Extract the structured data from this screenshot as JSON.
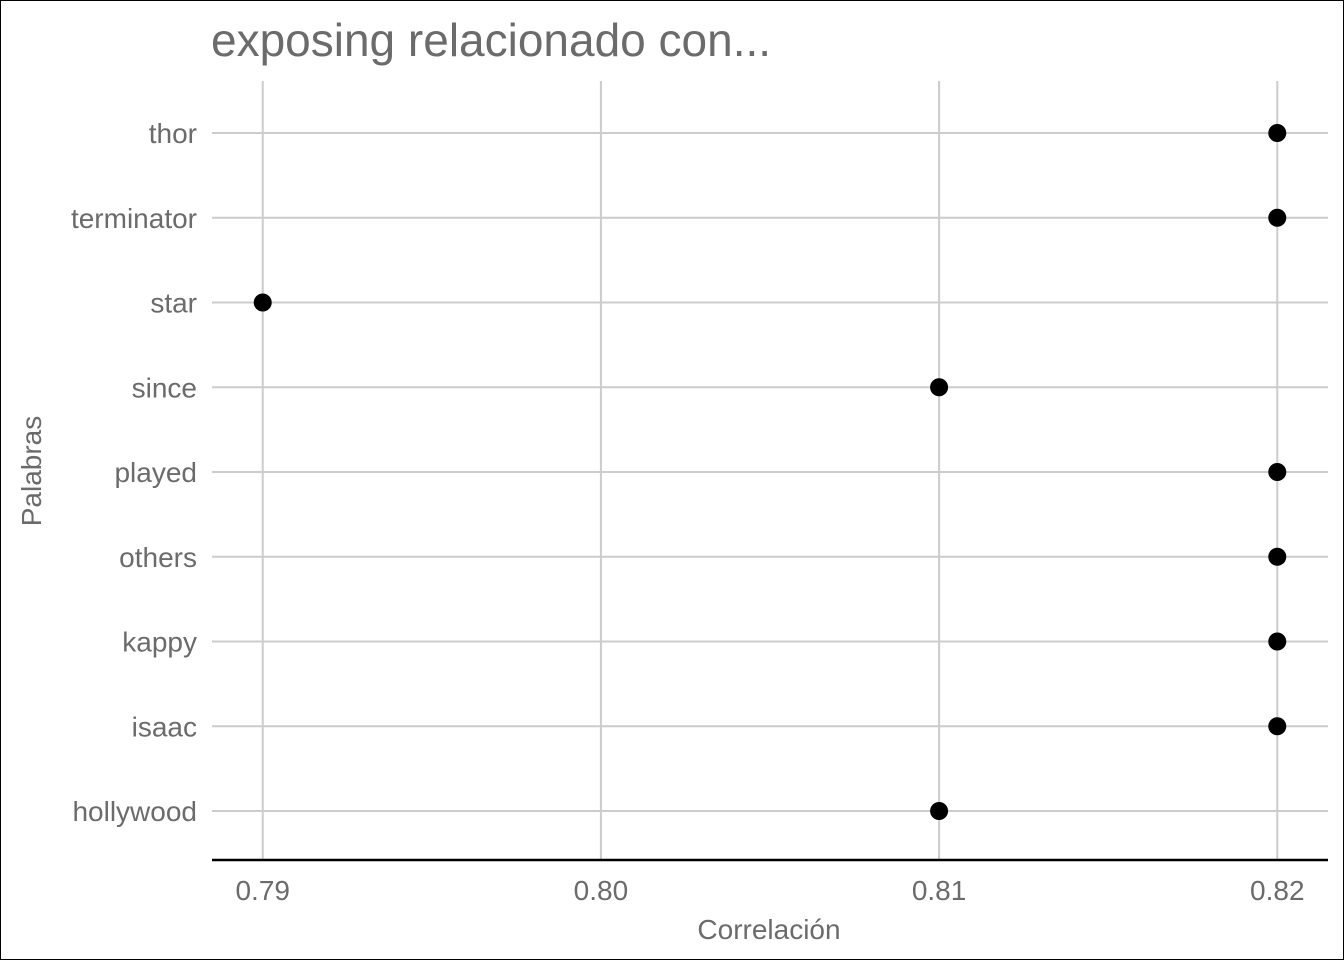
{
  "chart_data": {
    "type": "scatter",
    "title": "exposing relacionado con...",
    "xlabel": "Correlación",
    "ylabel": "Palabras",
    "categories": [
      "hollywood",
      "isaac",
      "kappy",
      "others",
      "played",
      "since",
      "star",
      "terminator",
      "thor"
    ],
    "values": [
      0.81,
      0.82,
      0.82,
      0.82,
      0.82,
      0.81,
      0.79,
      0.82,
      0.82
    ],
    "x_ticks": [
      "0.79",
      "0.80",
      "0.81",
      "0.82"
    ],
    "xlim": [
      0.7885,
      0.8215
    ],
    "grid": true,
    "point_color": "#000000",
    "grid_color": "#cccccc"
  }
}
